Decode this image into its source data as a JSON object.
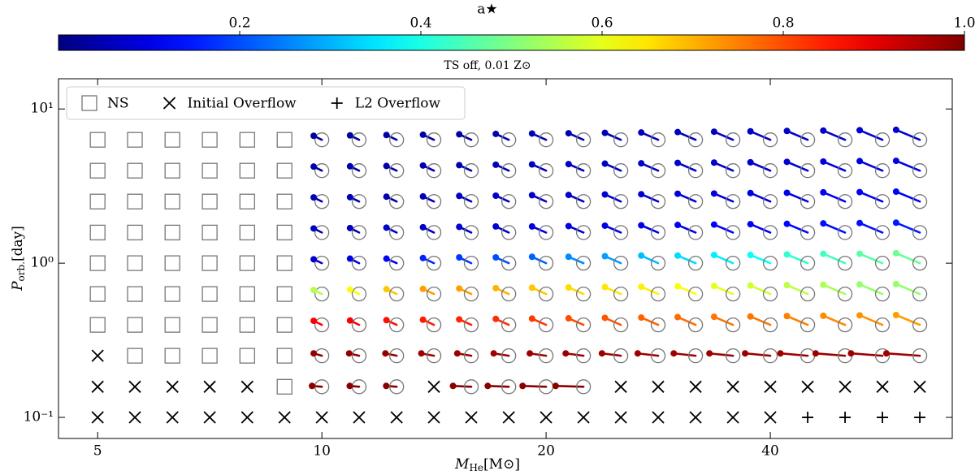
{
  "chart_data": {
    "type": "scatter",
    "colorbar": {
      "label": "a★",
      "lim": [
        0,
        1
      ],
      "ticks": [
        0.2,
        0.4,
        0.6,
        0.8,
        {
          "value": 1,
          "label": "1.0"
        }
      ],
      "colormap": "jet"
    },
    "subtitle": "TS off, 0.01 Z⊙",
    "xlabel": {
      "symbol": "M",
      "sub": "He",
      "unit": "[M⊙]"
    },
    "ylabel": {
      "symbol": "P",
      "sub": "orb.",
      "unit": "[day]"
    },
    "log_x": true,
    "log_y": true,
    "xlim": [
      4.43,
      70.2
    ],
    "ylim": [
      0.073,
      15.7
    ],
    "xticks": [
      5,
      10,
      20,
      40
    ],
    "yticks": [
      {
        "value": 0.1,
        "label": "10⁻¹"
      },
      {
        "value": 1,
        "label": "10⁰"
      },
      {
        "value": 10,
        "label": "10¹"
      }
    ],
    "legend": "upper left",
    "series": [
      {
        "name": "NS",
        "marker": "square",
        "color": "#777777",
        "x": [
          5,
          5.61,
          6.3,
          7.07,
          7.94,
          8.91,
          5,
          5.61,
          6.3,
          7.07,
          7.94,
          8.91,
          5,
          5.61,
          6.3,
          7.07,
          7.94,
          8.91,
          5,
          5.61,
          6.3,
          7.07,
          7.94,
          8.91,
          5,
          5.61,
          6.3,
          7.07,
          7.94,
          8.91,
          5,
          5.61,
          6.3,
          7.07,
          7.94,
          8.91,
          5,
          5.61,
          6.3,
          7.07,
          7.94,
          8.91,
          5.61,
          6.3,
          7.07,
          7.94,
          8.91,
          8.91
        ],
        "y": [
          6.31,
          6.31,
          6.31,
          6.31,
          6.31,
          6.31,
          3.98,
          3.98,
          3.98,
          3.98,
          3.98,
          3.98,
          2.51,
          2.51,
          2.51,
          2.51,
          2.51,
          2.51,
          1.58,
          1.58,
          1.58,
          1.58,
          1.58,
          1.58,
          1,
          1,
          1,
          1,
          1,
          1,
          0.631,
          0.631,
          0.631,
          0.631,
          0.631,
          0.631,
          0.398,
          0.398,
          0.398,
          0.398,
          0.398,
          0.398,
          0.251,
          0.251,
          0.251,
          0.251,
          0.251,
          0.158
        ]
      },
      {
        "name": "Initial Overflow",
        "marker": "x",
        "color": "#000000",
        "x": [
          5,
          5,
          5.61,
          6.3,
          7.07,
          7.94,
          14.14,
          25.2,
          28.28,
          31.75,
          35.64,
          40,
          44.9,
          50.4,
          56.57,
          63.5,
          5,
          5.61,
          6.3,
          7.07,
          7.94,
          8.91,
          10,
          11.22,
          12.6,
          14.14,
          15.87,
          17.82,
          20,
          22.45,
          25.2,
          28.28,
          31.75,
          35.64,
          40
        ],
        "y": [
          0.251,
          0.158,
          0.158,
          0.158,
          0.158,
          0.158,
          0.158,
          0.158,
          0.158,
          0.158,
          0.158,
          0.158,
          0.158,
          0.158,
          0.158,
          0.158,
          0.1,
          0.1,
          0.1,
          0.1,
          0.1,
          0.1,
          0.1,
          0.1,
          0.1,
          0.1,
          0.1,
          0.1,
          0.1,
          0.1,
          0.1,
          0.1,
          0.1,
          0.1,
          0.1
        ]
      },
      {
        "name": "L2 Overflow",
        "marker": "plus",
        "color": "#000000",
        "x": [
          44.9,
          50.4,
          56.57,
          63.5
        ],
        "y": [
          0.1,
          0.1,
          0.1,
          0.1
        ]
      }
    ],
    "black_holes": [
      {
        "period": 6.31,
        "mass": [
          10,
          11.22,
          12.6,
          14.14,
          15.87,
          17.82,
          20,
          22.45,
          25.2,
          28.28,
          31.75,
          35.64,
          40,
          44.9,
          50.4,
          56.57,
          63.5
        ],
        "final_mass": [
          9.75,
          10.91,
          12.21,
          13.67,
          15.29,
          17.12,
          19.15,
          21.44,
          23.99,
          26.84,
          30.04,
          33.62,
          37.62,
          42.11,
          47.12,
          52.73,
          59.01
        ],
        "final_period": [
          6.7,
          6.74,
          6.78,
          6.81,
          6.85,
          6.89,
          6.93,
          6.96,
          7,
          7.04,
          7.08,
          7.12,
          7.16,
          7.2,
          7.24,
          7.28,
          7.32
        ],
        "spin": [
          0.03,
          0.03,
          0.04,
          0.04,
          0.04,
          0.05,
          0.05,
          0.05,
          0.05,
          0.06,
          0.06,
          0.06,
          0.07,
          0.07,
          0.07,
          0.08,
          0.08
        ]
      },
      {
        "period": 3.98,
        "mass": [
          10,
          11.22,
          12.6,
          14.14,
          15.87,
          17.82,
          20,
          22.45,
          25.2,
          28.28,
          31.75,
          35.64,
          40,
          44.9,
          50.4,
          56.57,
          63.5
        ],
        "final_mass": [
          9.75,
          10.91,
          12.21,
          13.67,
          15.29,
          17.12,
          19.15,
          21.44,
          23.99,
          26.84,
          30.04,
          33.62,
          37.62,
          42.11,
          47.12,
          52.73,
          59.01
        ],
        "final_period": [
          4.23,
          4.25,
          4.27,
          4.3,
          4.32,
          4.35,
          4.37,
          4.39,
          4.42,
          4.44,
          4.47,
          4.49,
          4.51,
          4.54,
          4.56,
          4.59,
          4.61
        ],
        "spin": [
          0.04,
          0.04,
          0.04,
          0.05,
          0.05,
          0.05,
          0.06,
          0.06,
          0.06,
          0.07,
          0.07,
          0.07,
          0.08,
          0.08,
          0.09,
          0.09,
          0.1
        ]
      },
      {
        "period": 2.51,
        "mass": [
          10,
          11.22,
          12.6,
          14.14,
          15.87,
          17.82,
          20,
          22.45,
          25.2,
          28.28,
          31.75,
          35.64,
          40,
          44.9,
          50.4,
          56.57,
          63.5
        ],
        "final_mass": [
          9.75,
          10.91,
          12.21,
          13.67,
          15.29,
          17.12,
          19.15,
          21.44,
          23.99,
          26.84,
          30.04,
          33.62,
          37.62,
          42.11,
          47.12,
          52.73,
          59.01
        ],
        "final_period": [
          2.67,
          2.68,
          2.7,
          2.71,
          2.73,
          2.74,
          2.76,
          2.77,
          2.79,
          2.8,
          2.82,
          2.83,
          2.85,
          2.86,
          2.88,
          2.89,
          2.91
        ],
        "spin": [
          0.05,
          0.05,
          0.05,
          0.06,
          0.06,
          0.07,
          0.07,
          0.07,
          0.08,
          0.08,
          0.09,
          0.09,
          0.1,
          0.1,
          0.11,
          0.11,
          0.12
        ]
      },
      {
        "period": 1.58,
        "mass": [
          10,
          11.22,
          12.6,
          14.14,
          15.87,
          17.82,
          20,
          22.45,
          25.2,
          28.28,
          31.75,
          35.64,
          40,
          44.9,
          50.4,
          56.57,
          63.5
        ],
        "final_mass": [
          9.75,
          10.91,
          12.21,
          13.67,
          15.29,
          17.12,
          19.15,
          21.44,
          23.99,
          26.84,
          30.04,
          33.62,
          37.62,
          42.11,
          47.12,
          52.73,
          59.01
        ],
        "final_period": [
          1.68,
          1.69,
          1.7,
          1.71,
          1.72,
          1.73,
          1.73,
          1.74,
          1.75,
          1.76,
          1.77,
          1.78,
          1.79,
          1.8,
          1.81,
          1.82,
          1.83
        ],
        "spin": [
          0.06,
          0.06,
          0.07,
          0.07,
          0.08,
          0.08,
          0.09,
          0.09,
          0.1,
          0.1,
          0.11,
          0.12,
          0.12,
          0.13,
          0.14,
          0.14,
          0.15
        ]
      },
      {
        "period": 1,
        "mass": [
          10,
          11.22,
          12.6,
          14.14,
          15.87,
          17.82,
          20,
          22.45,
          25.2,
          28.28,
          31.75,
          35.64,
          40,
          44.9,
          50.4,
          56.57,
          63.5
        ],
        "final_mass": [
          9.75,
          10.91,
          12.21,
          13.67,
          15.29,
          17.12,
          19.15,
          21.44,
          23.99,
          26.84,
          30.04,
          33.62,
          37.62,
          42.11,
          47.12,
          52.73,
          59.01
        ],
        "final_period": [
          1.06,
          1.07,
          1.07,
          1.08,
          1.09,
          1.09,
          1.1,
          1.1,
          1.11,
          1.12,
          1.12,
          1.13,
          1.13,
          1.14,
          1.15,
          1.15,
          1.16
        ],
        "spin": [
          0.08,
          0.1,
          0.12,
          0.16,
          0.18,
          0.2,
          0.22,
          0.26,
          0.28,
          0.31,
          0.34,
          0.36,
          0.38,
          0.42,
          0.44,
          0.46,
          0.48
        ]
      },
      {
        "period": 0.631,
        "mass": [
          10,
          11.22,
          12.6,
          14.14,
          15.87,
          17.82,
          20,
          22.45,
          25.2,
          28.28,
          31.75,
          35.64,
          40,
          44.9,
          50.4,
          56.57,
          63.5
        ],
        "final_mass": [
          9.75,
          10.91,
          12.21,
          13.67,
          15.29,
          17.12,
          19.15,
          21.44,
          23.99,
          26.84,
          30.04,
          33.62,
          37.62,
          42.11,
          47.12,
          52.73,
          59.01
        ],
        "final_period": [
          0.67,
          0.674,
          0.678,
          0.681,
          0.685,
          0.689,
          0.693,
          0.696,
          0.7,
          0.704,
          0.708,
          0.712,
          0.716,
          0.72,
          0.724,
          0.728,
          0.732
        ],
        "spin": [
          0.55,
          0.62,
          0.68,
          0.72,
          0.72,
          0.7,
          0.68,
          0.66,
          0.65,
          0.64,
          0.62,
          0.6,
          0.58,
          0.56,
          0.54,
          0.52,
          0.52
        ]
      },
      {
        "period": 0.398,
        "mass": [
          10,
          11.22,
          12.6,
          14.14,
          15.87,
          17.82,
          20,
          22.45,
          25.2,
          28.28,
          31.75,
          35.64,
          40,
          44.9,
          50.4,
          56.57,
          63.5
        ],
        "final_mass": [
          9.75,
          10.91,
          12.21,
          13.67,
          15.29,
          17.12,
          19.15,
          21.44,
          23.99,
          26.84,
          30.04,
          33.62,
          37.62,
          42.11,
          47.12,
          52.73,
          59.01
        ],
        "final_period": [
          0.423,
          0.425,
          0.427,
          0.43,
          0.432,
          0.435,
          0.437,
          0.439,
          0.442,
          0.444,
          0.447,
          0.449,
          0.451,
          0.454,
          0.456,
          0.459,
          0.461
        ],
        "spin": [
          0.88,
          0.88,
          0.86,
          0.85,
          0.84,
          0.83,
          0.82,
          0.8,
          0.79,
          0.78,
          0.77,
          0.76,
          0.76,
          0.75,
          0.74,
          0.73,
          0.72
        ]
      },
      {
        "period": 0.251,
        "mass": [
          10,
          11.22,
          12.6,
          14.14,
          15.87,
          17.82,
          20,
          22.45,
          25.2,
          28.28,
          31.75,
          35.64,
          40,
          44.9,
          50.4,
          56.57,
          63.5
        ],
        "final_mass": [
          9.75,
          10.88,
          12.17,
          13.6,
          15.2,
          17.01,
          19.02,
          21.25,
          23.77,
          26.55,
          29.68,
          33.14,
          37,
          41.27,
          46.02,
          51.34,
          57.27
        ],
        "final_period": [
          0.26,
          0.26,
          0.26,
          0.26,
          0.26,
          0.26,
          0.26,
          0.26,
          0.26,
          0.26,
          0.26,
          0.26,
          0.26,
          0.26,
          0.26,
          0.26,
          0.26
        ],
        "spin": [
          0.98,
          0.98,
          0.98,
          0.97,
          0.97,
          0.97,
          0.97,
          0.97,
          0.97,
          0.97,
          0.97,
          0.97,
          0.97,
          0.97,
          0.97,
          0.97,
          0.97
        ]
      },
      {
        "period": 0.158,
        "mass": [
          10,
          11.22,
          12.6,
          15.87,
          17.82,
          20,
          22.45
        ],
        "final_mass": [
          9.7,
          10.9,
          12.2,
          15,
          16.7,
          18.6,
          20.6
        ],
        "final_period": [
          0.16,
          0.16,
          0.16,
          0.16,
          0.16,
          0.16,
          0.16
        ],
        "spin": [
          0.99,
          0.99,
          0.99,
          0.99,
          0.99,
          0.99,
          0.99
        ]
      }
    ]
  }
}
